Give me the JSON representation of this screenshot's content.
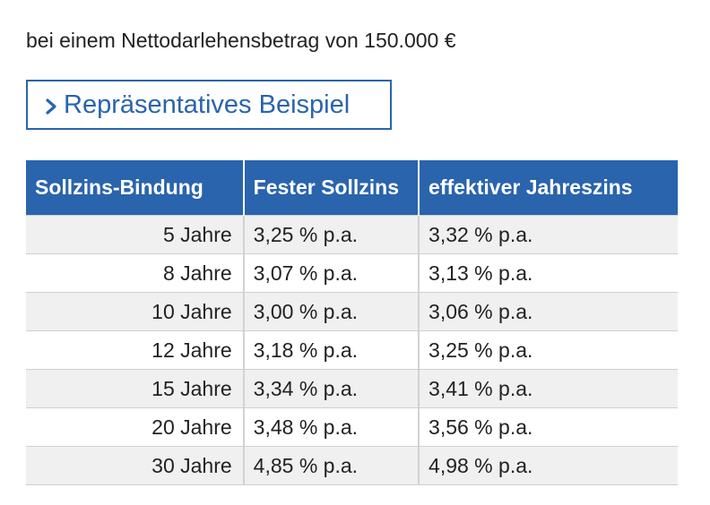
{
  "intro_text": "bei einem Nettodarlehensbetrag von 150.000 €",
  "example_link": {
    "label": "Repräsentatives Beispiel",
    "icon": "chevron-right-icon",
    "color": "#2a64ad"
  },
  "table": {
    "headers": [
      "Sollzins-Bindung",
      "Fester Sollzins",
      "effektiver Jahreszins"
    ],
    "header_color": "#2a64ad",
    "rows": [
      {
        "term": "5 Jahre",
        "fixed_rate": "3,25 % p.a.",
        "effective_rate": "3,32 % p.a."
      },
      {
        "term": "8 Jahre",
        "fixed_rate": "3,07 % p.a.",
        "effective_rate": "3,13 % p.a."
      },
      {
        "term": "10 Jahre",
        "fixed_rate": "3,00 % p.a.",
        "effective_rate": "3,06 % p.a."
      },
      {
        "term": "12 Jahre",
        "fixed_rate": "3,18 % p.a.",
        "effective_rate": "3,25 % p.a."
      },
      {
        "term": "15 Jahre",
        "fixed_rate": "3,34 % p.a.",
        "effective_rate": "3,41 % p.a."
      },
      {
        "term": "20 Jahre",
        "fixed_rate": "3,48 % p.a.",
        "effective_rate": "3,56 % p.a."
      },
      {
        "term": "30 Jahre",
        "fixed_rate": "4,85 % p.a.",
        "effective_rate": "4,98 % p.a."
      }
    ]
  }
}
